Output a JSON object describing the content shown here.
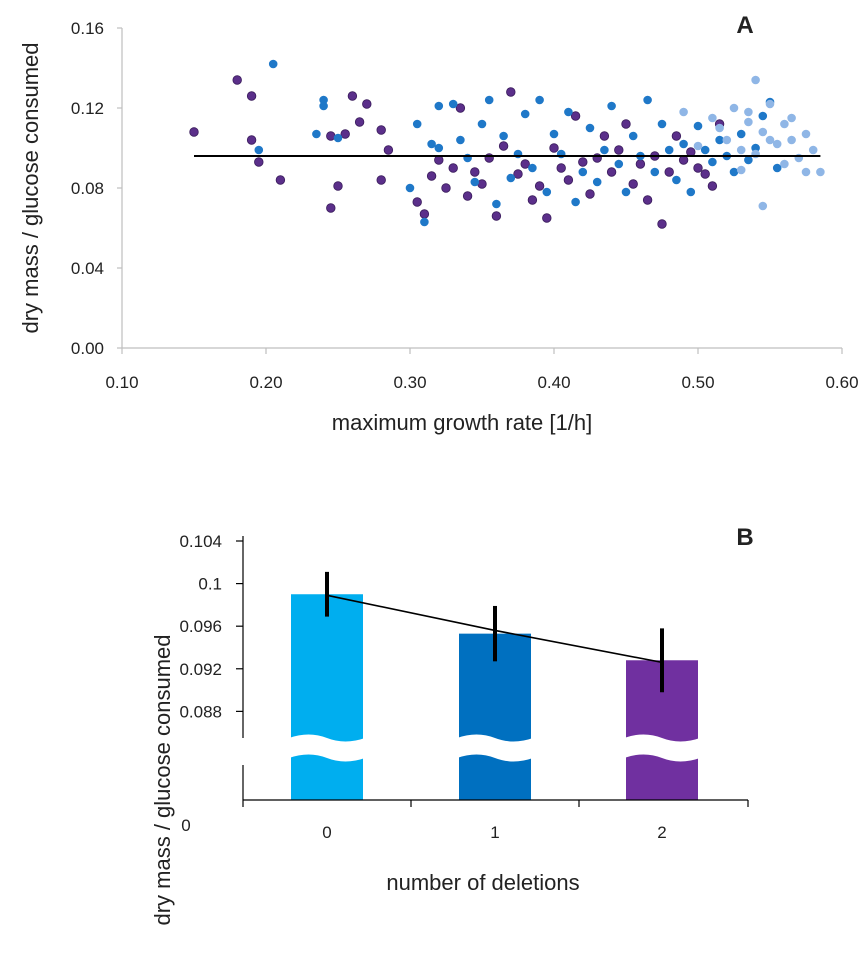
{
  "chart_data": [
    {
      "panel": "A",
      "type": "scatter",
      "xlabel": "maximum growth rate [1/h]",
      "ylabel": "dry mass / glucose consumed",
      "xlim": [
        0.1,
        0.6
      ],
      "ylim": [
        0.0,
        0.16
      ],
      "x_ticks": [
        "0.10",
        "0.20",
        "0.30",
        "0.40",
        "0.50",
        "0.60"
      ],
      "y_ticks": [
        "0.00",
        "0.04",
        "0.08",
        "0.12",
        "0.16"
      ],
      "grid": false,
      "colors": {
        "0": "#8fb6e6",
        "1": "#1f78c8",
        "2": "#5b2f8a",
        "trend": "#000000"
      },
      "trend_line": {
        "x": [
          0.15,
          0.585
        ],
        "y": [
          0.096,
          0.096
        ]
      },
      "series": [
        {
          "key": "2",
          "points": [
            [
              0.15,
              0.108
            ],
            [
              0.18,
              0.134
            ],
            [
              0.19,
              0.126
            ],
            [
              0.19,
              0.104
            ],
            [
              0.195,
              0.093
            ],
            [
              0.21,
              0.084
            ],
            [
              0.245,
              0.07
            ],
            [
              0.245,
              0.106
            ],
            [
              0.25,
              0.081
            ],
            [
              0.255,
              0.107
            ],
            [
              0.26,
              0.126
            ],
            [
              0.265,
              0.113
            ],
            [
              0.27,
              0.122
            ],
            [
              0.28,
              0.109
            ],
            [
              0.28,
              0.084
            ],
            [
              0.285,
              0.099
            ],
            [
              0.305,
              0.073
            ],
            [
              0.31,
              0.067
            ],
            [
              0.315,
              0.086
            ],
            [
              0.32,
              0.094
            ],
            [
              0.325,
              0.08
            ],
            [
              0.33,
              0.09
            ],
            [
              0.335,
              0.12
            ],
            [
              0.34,
              0.076
            ],
            [
              0.345,
              0.088
            ],
            [
              0.35,
              0.082
            ],
            [
              0.355,
              0.095
            ],
            [
              0.36,
              0.066
            ],
            [
              0.365,
              0.101
            ],
            [
              0.37,
              0.128
            ],
            [
              0.375,
              0.087
            ],
            [
              0.38,
              0.092
            ],
            [
              0.385,
              0.074
            ],
            [
              0.39,
              0.081
            ],
            [
              0.395,
              0.065
            ],
            [
              0.4,
              0.1
            ],
            [
              0.405,
              0.09
            ],
            [
              0.41,
              0.084
            ],
            [
              0.415,
              0.116
            ],
            [
              0.42,
              0.093
            ],
            [
              0.425,
              0.077
            ],
            [
              0.43,
              0.095
            ],
            [
              0.435,
              0.106
            ],
            [
              0.44,
              0.088
            ],
            [
              0.445,
              0.099
            ],
            [
              0.45,
              0.112
            ],
            [
              0.455,
              0.082
            ],
            [
              0.46,
              0.092
            ],
            [
              0.465,
              0.074
            ],
            [
              0.47,
              0.096
            ],
            [
              0.475,
              0.062
            ],
            [
              0.48,
              0.088
            ],
            [
              0.485,
              0.106
            ],
            [
              0.49,
              0.094
            ],
            [
              0.495,
              0.098
            ],
            [
              0.5,
              0.09
            ],
            [
              0.505,
              0.087
            ],
            [
              0.51,
              0.081
            ],
            [
              0.515,
              0.112
            ]
          ]
        },
        {
          "key": "1",
          "points": [
            [
              0.205,
              0.142
            ],
            [
              0.195,
              0.099
            ],
            [
              0.235,
              0.107
            ],
            [
              0.24,
              0.121
            ],
            [
              0.24,
              0.124
            ],
            [
              0.25,
              0.105
            ],
            [
              0.3,
              0.08
            ],
            [
              0.305,
              0.112
            ],
            [
              0.31,
              0.063
            ],
            [
              0.315,
              0.102
            ],
            [
              0.32,
              0.1
            ],
            [
              0.32,
              0.121
            ],
            [
              0.33,
              0.122
            ],
            [
              0.335,
              0.104
            ],
            [
              0.34,
              0.095
            ],
            [
              0.345,
              0.083
            ],
            [
              0.35,
              0.112
            ],
            [
              0.355,
              0.124
            ],
            [
              0.36,
              0.072
            ],
            [
              0.365,
              0.106
            ],
            [
              0.37,
              0.085
            ],
            [
              0.375,
              0.097
            ],
            [
              0.38,
              0.117
            ],
            [
              0.385,
              0.09
            ],
            [
              0.39,
              0.124
            ],
            [
              0.395,
              0.078
            ],
            [
              0.4,
              0.107
            ],
            [
              0.405,
              0.097
            ],
            [
              0.41,
              0.118
            ],
            [
              0.415,
              0.073
            ],
            [
              0.42,
              0.088
            ],
            [
              0.425,
              0.11
            ],
            [
              0.43,
              0.083
            ],
            [
              0.435,
              0.099
            ],
            [
              0.44,
              0.121
            ],
            [
              0.445,
              0.092
            ],
            [
              0.45,
              0.078
            ],
            [
              0.455,
              0.106
            ],
            [
              0.46,
              0.096
            ],
            [
              0.465,
              0.124
            ],
            [
              0.47,
              0.088
            ],
            [
              0.475,
              0.112
            ],
            [
              0.48,
              0.099
            ],
            [
              0.485,
              0.084
            ],
            [
              0.49,
              0.102
            ],
            [
              0.495,
              0.078
            ],
            [
              0.5,
              0.111
            ],
            [
              0.505,
              0.099
            ],
            [
              0.51,
              0.093
            ],
            [
              0.515,
              0.104
            ],
            [
              0.52,
              0.096
            ],
            [
              0.525,
              0.088
            ],
            [
              0.53,
              0.107
            ],
            [
              0.535,
              0.094
            ],
            [
              0.54,
              0.1
            ],
            [
              0.545,
              0.116
            ],
            [
              0.55,
              0.123
            ],
            [
              0.555,
              0.09
            ]
          ]
        },
        {
          "key": "0",
          "points": [
            [
              0.49,
              0.118
            ],
            [
              0.5,
              0.101
            ],
            [
              0.51,
              0.115
            ],
            [
              0.515,
              0.11
            ],
            [
              0.52,
              0.104
            ],
            [
              0.525,
              0.12
            ],
            [
              0.53,
              0.089
            ],
            [
              0.535,
              0.113
            ],
            [
              0.54,
              0.134
            ],
            [
              0.54,
              0.097
            ],
            [
              0.545,
              0.108
            ],
            [
              0.545,
              0.071
            ],
            [
              0.55,
              0.122
            ],
            [
              0.555,
              0.102
            ],
            [
              0.56,
              0.112
            ],
            [
              0.56,
              0.092
            ],
            [
              0.565,
              0.104
            ],
            [
              0.57,
              0.095
            ],
            [
              0.575,
              0.107
            ],
            [
              0.575,
              0.088
            ],
            [
              0.58,
              0.099
            ],
            [
              0.585,
              0.088
            ],
            [
              0.53,
              0.099
            ],
            [
              0.535,
              0.118
            ],
            [
              0.55,
              0.104
            ],
            [
              0.565,
              0.115
            ]
          ]
        }
      ]
    },
    {
      "panel": "B",
      "type": "bar",
      "xlabel": "number of deletions",
      "ylabel": "dry mass / glucose consumed",
      "categories": [
        "0",
        "1",
        "2"
      ],
      "values": [
        0.099,
        0.0953,
        0.0928
      ],
      "error": [
        0.0021,
        0.0026,
        0.003
      ],
      "trend_line": [
        0.0989,
        0.0956,
        0.0926
      ],
      "colors": [
        "#00aeef",
        "#0070c0",
        "#7030a0"
      ],
      "ylim": [
        0.085,
        0.104
      ],
      "y_ticks": [
        "0.104",
        "0.1",
        "0.096",
        "0.092",
        "0.088"
      ],
      "y_tick_values": [
        0.104,
        0.1,
        0.096,
        0.092,
        0.088
      ],
      "axis_break": true,
      "y_zero_label": "0",
      "grid": false
    }
  ]
}
